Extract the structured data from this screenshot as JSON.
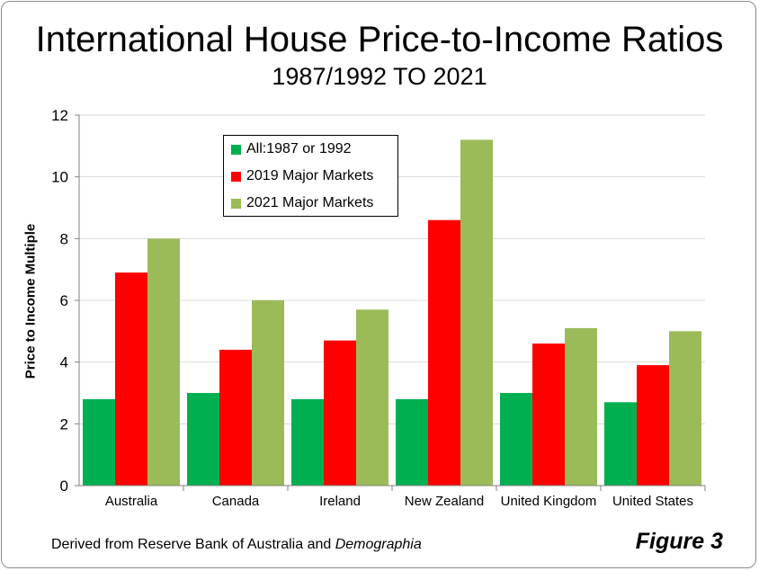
{
  "source_note": {
    "prefix": "Derived from Reserve Bank of Australia and ",
    "emphasis": "Demographia"
  },
  "figure_label": "Figure 3",
  "chart_data": {
    "type": "bar",
    "title": "International House Price-to-Income Ratios",
    "subtitle": "1987/1992 TO 2021",
    "xlabel": "",
    "ylabel": "Price to Income Multiple",
    "ylim": [
      0,
      12
    ],
    "yticks": [
      0,
      2,
      4,
      6,
      8,
      10,
      12
    ],
    "grid": "horizontal",
    "legend_position": "top-left-inside",
    "categories": [
      "Australia",
      "Canada",
      "Ireland",
      "New Zealand",
      "United Kingdom",
      "United States"
    ],
    "series": [
      {
        "name": "All:1987 or 1992",
        "color": "#00b050",
        "values": [
          2.8,
          3.0,
          2.8,
          2.8,
          3.0,
          2.7
        ]
      },
      {
        "name": "2019 Major Markets",
        "color": "#ff0000",
        "values": [
          6.9,
          4.4,
          4.7,
          8.6,
          4.6,
          3.9
        ]
      },
      {
        "name": "2021 Major Markets",
        "color": "#9bbb59",
        "values": [
          8.0,
          6.0,
          5.7,
          11.2,
          5.1,
          5.0
        ]
      }
    ]
  }
}
